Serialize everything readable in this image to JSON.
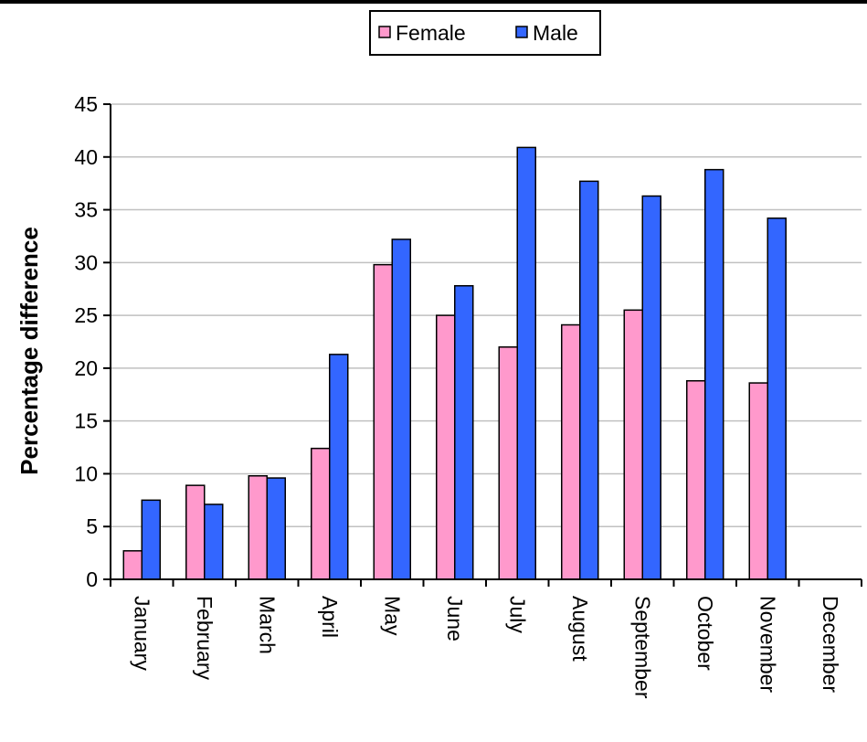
{
  "chart_data": {
    "type": "bar",
    "title": "",
    "xlabel": "",
    "ylabel": "Percentage difference",
    "ylim": [
      0,
      45
    ],
    "yticks": [
      0,
      5,
      10,
      15,
      20,
      25,
      30,
      35,
      40,
      45
    ],
    "grid": true,
    "legend_position": "top-center",
    "categories": [
      "January",
      "February",
      "March",
      "April",
      "May",
      "June",
      "July",
      "August",
      "September",
      "October",
      "November",
      "December"
    ],
    "series": [
      {
        "name": "Female",
        "color": "#ff99cc",
        "values": [
          2.7,
          8.9,
          9.8,
          12.4,
          29.8,
          25.0,
          22.0,
          24.1,
          25.5,
          18.8,
          18.6,
          null
        ]
      },
      {
        "name": "Male",
        "color": "#3366ff",
        "values": [
          7.5,
          7.1,
          9.6,
          21.3,
          32.2,
          27.8,
          40.9,
          37.7,
          36.3,
          38.8,
          34.2,
          null
        ]
      }
    ]
  }
}
